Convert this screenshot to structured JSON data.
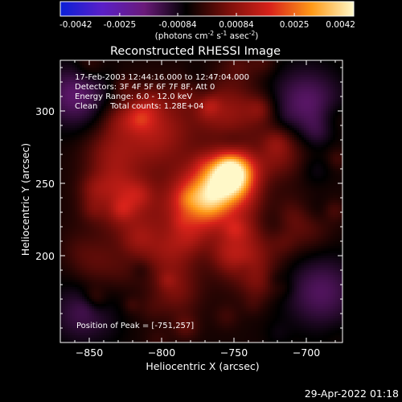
{
  "chart_data": {
    "type": "heatmap",
    "title": "Reconstructed RHESSI Image",
    "xlabel": "Heliocentric X (arcsec)",
    "ylabel": "Heliocentric Y (arcsec)",
    "xlim": [
      -870,
      -675
    ],
    "ylim": [
      140,
      335
    ],
    "xticks": [
      -850,
      -800,
      -750,
      -700
    ],
    "yticks": [
      200,
      250,
      300
    ],
    "grid": false,
    "colorbar": {
      "position": "top",
      "range": [
        -0.0042,
        0.0042
      ],
      "tick_values": [
        -0.0042,
        -0.0025,
        -0.00084,
        0.00084,
        0.0025,
        0.0042
      ],
      "tick_labels": [
        "-0.0042",
        "-0.0025",
        "-0.00084",
        "0.00084",
        "0.0025",
        "0.0042"
      ],
      "label_main": "(photons cm",
      "label_exp1": "-2",
      "label_mid1": " s",
      "label_exp2": "-1",
      "label_mid2": " asec",
      "label_exp3": "-2",
      "label_end": ")",
      "colors": [
        "#0a1fd6",
        "#5a1fc8",
        "#6a1a7a",
        "#000000",
        "#7a0f0a",
        "#d8221a",
        "#ff9a18",
        "#fff8c8"
      ]
    },
    "annotations": [
      "17-Feb-2003 12:44:16.000 to 12:47:04.000",
      "Detectors: 3F 4F 5F 6F 7F 8F, Att 0",
      "Energy Range: 6.0 - 12.0 keV",
      "Clean     Total counts: 1.28E+04"
    ],
    "peak_label": "Position of Peak = [-751,257]",
    "peak": [
      -751,
      257
    ],
    "timestamp": "29-Apr-2022 01:18",
    "sources": [
      {
        "x": -751,
        "y": 257,
        "amp": 0.0042,
        "sigma": 11
      },
      {
        "x": -763,
        "y": 244,
        "amp": 0.0028,
        "sigma": 16
      },
      {
        "x": -778,
        "y": 234,
        "amp": 0.0018,
        "sigma": 14
      },
      {
        "x": -805,
        "y": 286,
        "amp": 0.0016,
        "sigma": 18
      },
      {
        "x": -825,
        "y": 236,
        "amp": 0.0014,
        "sigma": 16
      },
      {
        "x": -795,
        "y": 205,
        "amp": 0.0013,
        "sigma": 14
      },
      {
        "x": -755,
        "y": 300,
        "amp": 0.0013,
        "sigma": 15
      },
      {
        "x": -720,
        "y": 272,
        "amp": 0.0012,
        "sigma": 13
      },
      {
        "x": -740,
        "y": 200,
        "amp": 0.0011,
        "sigma": 16
      },
      {
        "x": -790,
        "y": 175,
        "amp": 0.0009,
        "sigma": 12
      },
      {
        "x": -835,
        "y": 270,
        "amp": 0.001,
        "sigma": 13
      },
      {
        "x": -843,
        "y": 195,
        "amp": 0.0006,
        "sigma": 12
      },
      {
        "x": -700,
        "y": 220,
        "amp": 0.0007,
        "sigma": 12
      },
      {
        "x": -700,
        "y": 305,
        "amp": -0.0012,
        "sigma": 18
      },
      {
        "x": -860,
        "y": 310,
        "amp": -0.0013,
        "sigma": 15
      },
      {
        "x": -690,
        "y": 175,
        "amp": -0.0011,
        "sigma": 18
      },
      {
        "x": -855,
        "y": 160,
        "amp": -0.0009,
        "sigma": 15
      }
    ]
  }
}
